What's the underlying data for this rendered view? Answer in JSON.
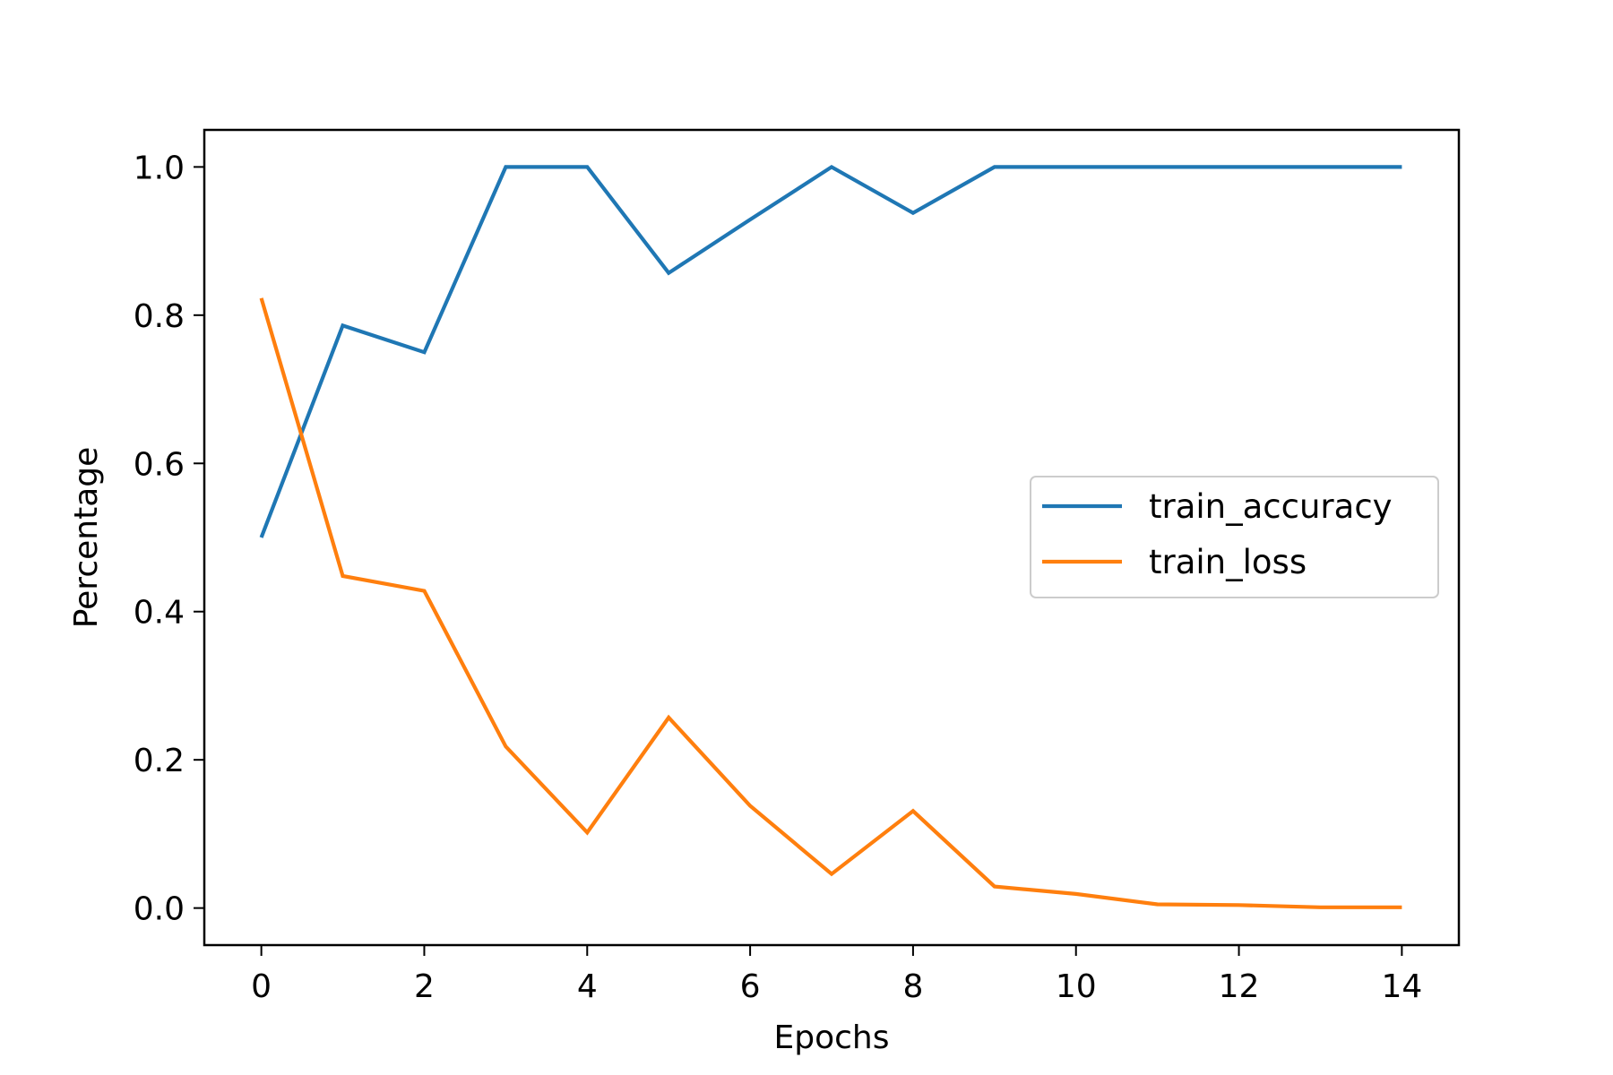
{
  "chart_data": {
    "type": "line",
    "title": "",
    "xlabel": "Epochs",
    "ylabel": "Percentage",
    "xlim": [
      -0.7,
      14.7
    ],
    "ylim": [
      -0.05,
      1.05
    ],
    "xticks": [
      0,
      2,
      4,
      6,
      8,
      10,
      12,
      14
    ],
    "xtick_labels": [
      "0",
      "2",
      "4",
      "6",
      "8",
      "10",
      "12",
      "14"
    ],
    "yticks": [
      0.0,
      0.2,
      0.4,
      0.6,
      0.8,
      1.0
    ],
    "ytick_labels": [
      "0.0",
      "0.2",
      "0.4",
      "0.6",
      "0.8",
      "1.0"
    ],
    "grid": false,
    "legend_position": "center-right",
    "x": [
      0,
      1,
      2,
      3,
      4,
      5,
      6,
      7,
      8,
      9,
      10,
      11,
      12,
      13,
      14
    ],
    "series": [
      {
        "name": "train_accuracy",
        "color": "#1f77b4",
        "values": [
          0.5,
          0.786,
          0.75,
          1.0,
          1.0,
          0.857,
          0.929,
          1.0,
          0.938,
          1.0,
          1.0,
          1.0,
          1.0,
          1.0,
          1.0
        ]
      },
      {
        "name": "train_loss",
        "color": "#ff7f0e",
        "values": [
          0.823,
          0.448,
          0.428,
          0.218,
          0.102,
          0.257,
          0.138,
          0.046,
          0.131,
          0.029,
          0.019,
          0.005,
          0.004,
          0.001,
          0.001
        ]
      }
    ]
  }
}
